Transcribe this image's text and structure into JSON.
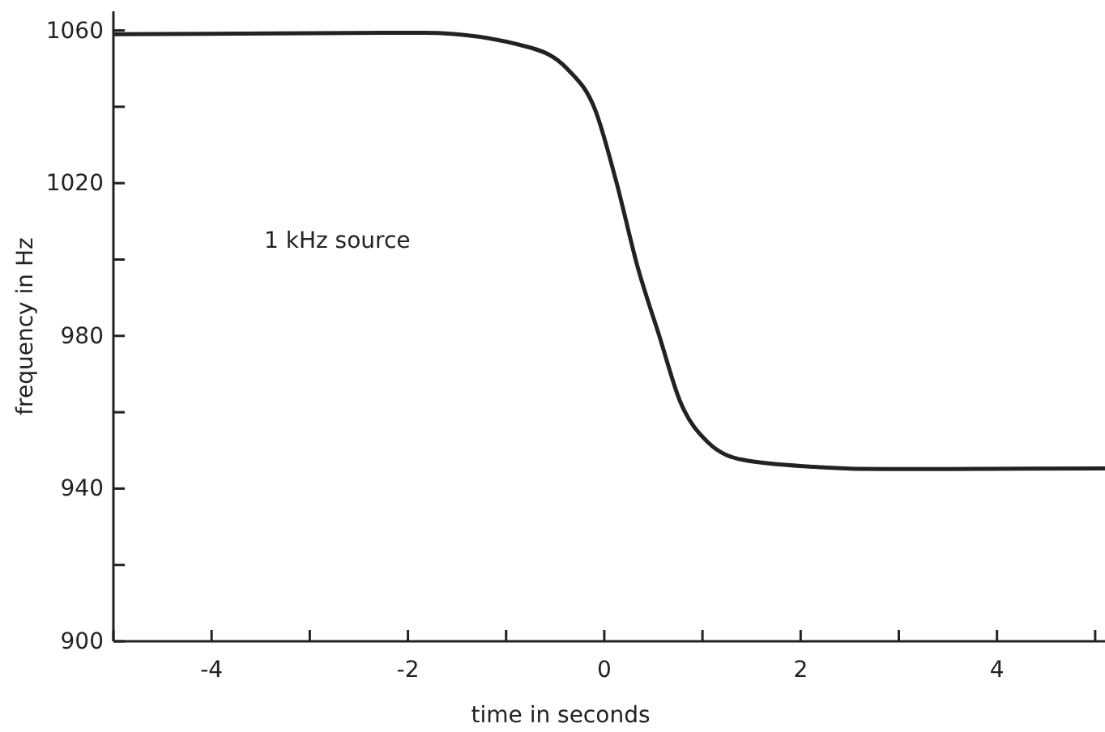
{
  "chart_data": {
    "type": "line",
    "xlabel": "time in seconds",
    "ylabel": "frequency in Hz",
    "annotations": [
      "1 kHz source"
    ],
    "x": [
      -5,
      -1.83,
      -0.74,
      -0.38,
      -0.09,
      0.12,
      0.34,
      0.56,
      0.77,
      1.06,
      1.42,
      2.14,
      2.87,
      5.1
    ],
    "series": [
      {
        "color": "#222222",
        "values": [
          1059,
          1059.4,
          1055.4,
          1050,
          1039,
          1020.6,
          998,
          980,
          963,
          952,
          947.5,
          945.7,
          945.1,
          945.3
        ]
      }
    ],
    "xlim": [
      -5,
      5.1
    ],
    "ylim": [
      900,
      1065
    ],
    "xticks": [
      {
        "value": -5,
        "label": null
      },
      -4,
      {
        "value": -3,
        "label": null
      },
      -2,
      {
        "value": -1,
        "label": null
      },
      0,
      {
        "value": 1,
        "label": null
      },
      2,
      {
        "value": 3,
        "label": null
      },
      4,
      {
        "value": 5,
        "label": null
      }
    ],
    "yticks": [
      900,
      {
        "value": 920,
        "label": null
      },
      940,
      {
        "value": 960,
        "label": null
      },
      980,
      {
        "value": 1000,
        "label": null
      },
      1020,
      {
        "value": 1040,
        "label": null
      },
      1060
    ],
    "grid": false,
    "marker": "none",
    "line_style": "solid"
  }
}
